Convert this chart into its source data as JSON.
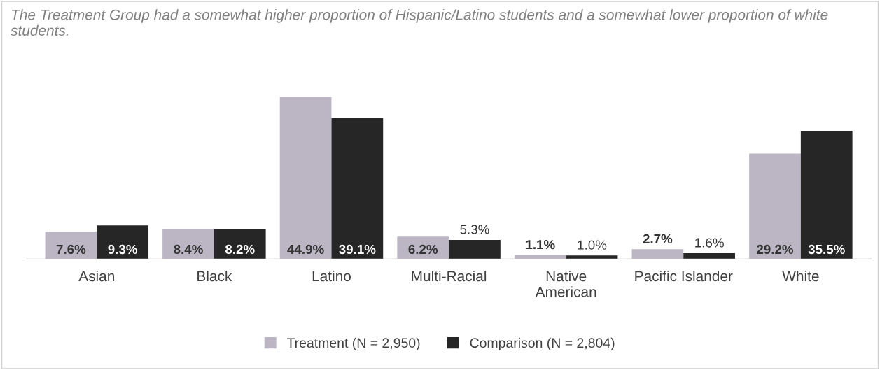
{
  "chart_data": {
    "type": "bar",
    "title": "The Treatment Group had a somewhat higher proportion of Hispanic/Latino students and a somewhat lower proportion of white students.",
    "categories": [
      "Asian",
      "Black",
      "Latino",
      "Multi-Racial",
      "Native\nAmerican",
      "Pacific Islander",
      "White"
    ],
    "series": [
      {
        "name": "Treatment (N = 2,950)",
        "color": "#bcb6c4",
        "values": [
          7.6,
          8.4,
          44.9,
          6.2,
          1.1,
          2.7,
          29.2
        ],
        "value_labels": [
          "7.6%",
          "8.4%",
          "44.9%",
          "6.2%",
          "1.1%",
          "2.7%",
          "29.2%"
        ]
      },
      {
        "name": "Comparison (N = 2,804)",
        "color": "#262626",
        "values": [
          9.3,
          8.2,
          39.1,
          5.3,
          1.0,
          1.6,
          35.5
        ],
        "value_labels": [
          "9.3%",
          "8.2%",
          "39.1%",
          "5.3%",
          "1.0%",
          "1.6%",
          "35.5%"
        ]
      }
    ],
    "legend": "bottom",
    "grid": false
  }
}
